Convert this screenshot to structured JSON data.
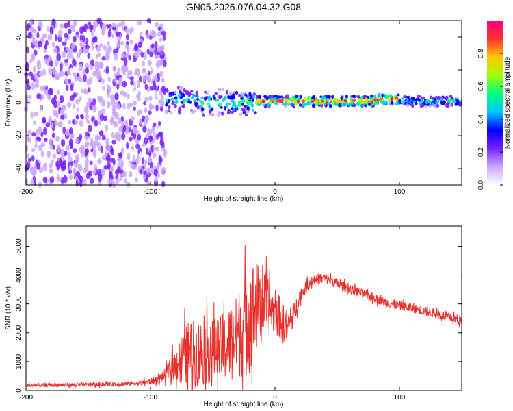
{
  "title": "GN05.2026.076.04.32.G08",
  "chart_data": [
    {
      "type": "heatmap",
      "xlabel": "Height of straight line (km)",
      "ylabel": "Frequency (Hz)",
      "xlim": [
        -200,
        150
      ],
      "ylim": [
        -50,
        50
      ],
      "xticks": [
        -200,
        -100,
        0,
        100
      ],
      "yticks": [
        -40,
        -20,
        0,
        20,
        40
      ],
      "colorbar": {
        "label": "Normalized spectral amplitude",
        "range": [
          0,
          1
        ],
        "ticks": [
          "0.0",
          "0.2",
          "0.4",
          "0.6",
          "0.8"
        ],
        "colors": [
          "#ffffff",
          "#c9a8ff",
          "#7a20ff",
          "#0000ff",
          "#00c8ff",
          "#00ff80",
          "#a0ff00",
          "#ffc800",
          "#ff3030",
          "#ff0080"
        ]
      },
      "features": [
        {
          "x_range": [
            -200,
            -88
          ],
          "description_level": "noise",
          "amplitude": 0.1
        },
        {
          "x_range": [
            -88,
            -60
          ],
          "center_freq": 2,
          "amplitude": 0.45
        },
        {
          "x_range": [
            -60,
            -15
          ],
          "center_freq": 0,
          "amplitude": 0.55
        },
        {
          "x_range": [
            -15,
            80
          ],
          "center_freq": 1,
          "amplitude": 0.9
        },
        {
          "x_range": [
            80,
            100
          ],
          "center_freq": 2,
          "amplitude": 0.95
        },
        {
          "x_range": [
            100,
            150
          ],
          "center_freq": 1,
          "amplitude": 0.5
        }
      ]
    },
    {
      "type": "line",
      "xlabel": "Height of straight line (km)",
      "ylabel": "SNR (10 * v/v)",
      "xlim": [
        -200,
        150
      ],
      "ylim": [
        0,
        5700
      ],
      "xticks": [
        -200,
        -100,
        0,
        100
      ],
      "yticks": [
        0,
        1000,
        2000,
        3000,
        4000,
        5000
      ],
      "color": "#e8312c",
      "envelope": {
        "x": [
          -200,
          -150,
          -110,
          -95,
          -88,
          -80,
          -70,
          -60,
          -50,
          -40,
          -30,
          -25,
          -20,
          -15,
          -10,
          0,
          5,
          10,
          15,
          20,
          30,
          40,
          50,
          70,
          90,
          110,
          130,
          150
        ],
        "mean": [
          180,
          200,
          250,
          350,
          550,
          900,
          1200,
          1300,
          1400,
          1500,
          1900,
          2300,
          2600,
          2900,
          3000,
          2700,
          2500,
          2200,
          2600,
          3300,
          3850,
          3900,
          3700,
          3350,
          3050,
          2850,
          2650,
          2400
        ],
        "spread": [
          80,
          90,
          100,
          150,
          300,
          700,
          1500,
          1500,
          1400,
          1500,
          1800,
          2400,
          2500,
          2000,
          1500,
          900,
          1000,
          700,
          500,
          300,
          250,
          220,
          220,
          200,
          200,
          200,
          200,
          200
        ]
      }
    }
  ]
}
